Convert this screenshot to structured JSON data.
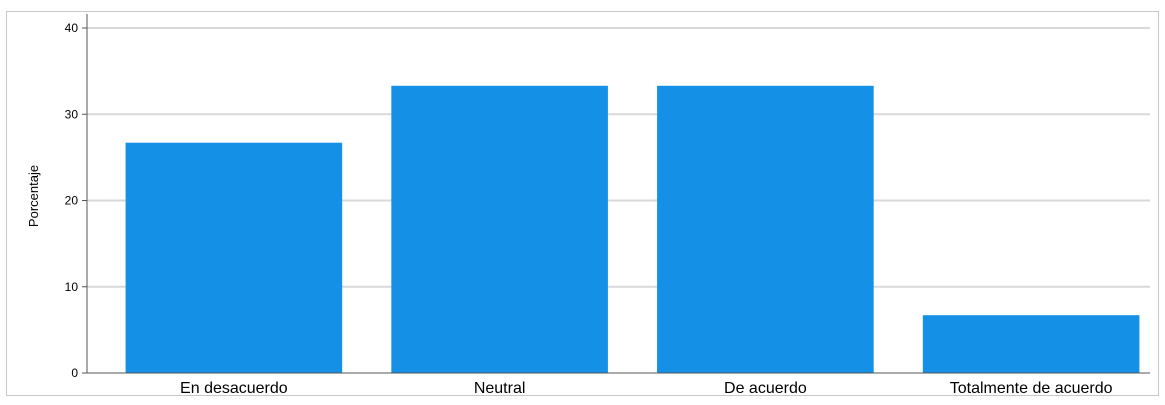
{
  "chart_data": {
    "type": "bar",
    "categories": [
      "En desacuerdo",
      "Neutral",
      "De acuerdo",
      "Totalmente de acuerdo"
    ],
    "values": [
      26.7,
      33.3,
      33.3,
      6.7
    ],
    "ylabel": "Porcentaje",
    "xlabel": "",
    "ylim": [
      0,
      40
    ],
    "yticks": [
      "0",
      "10",
      "20",
      "30",
      "40"
    ],
    "grid": true,
    "bar_color": "#1491e6",
    "grid_color": "#d9d9d9"
  }
}
